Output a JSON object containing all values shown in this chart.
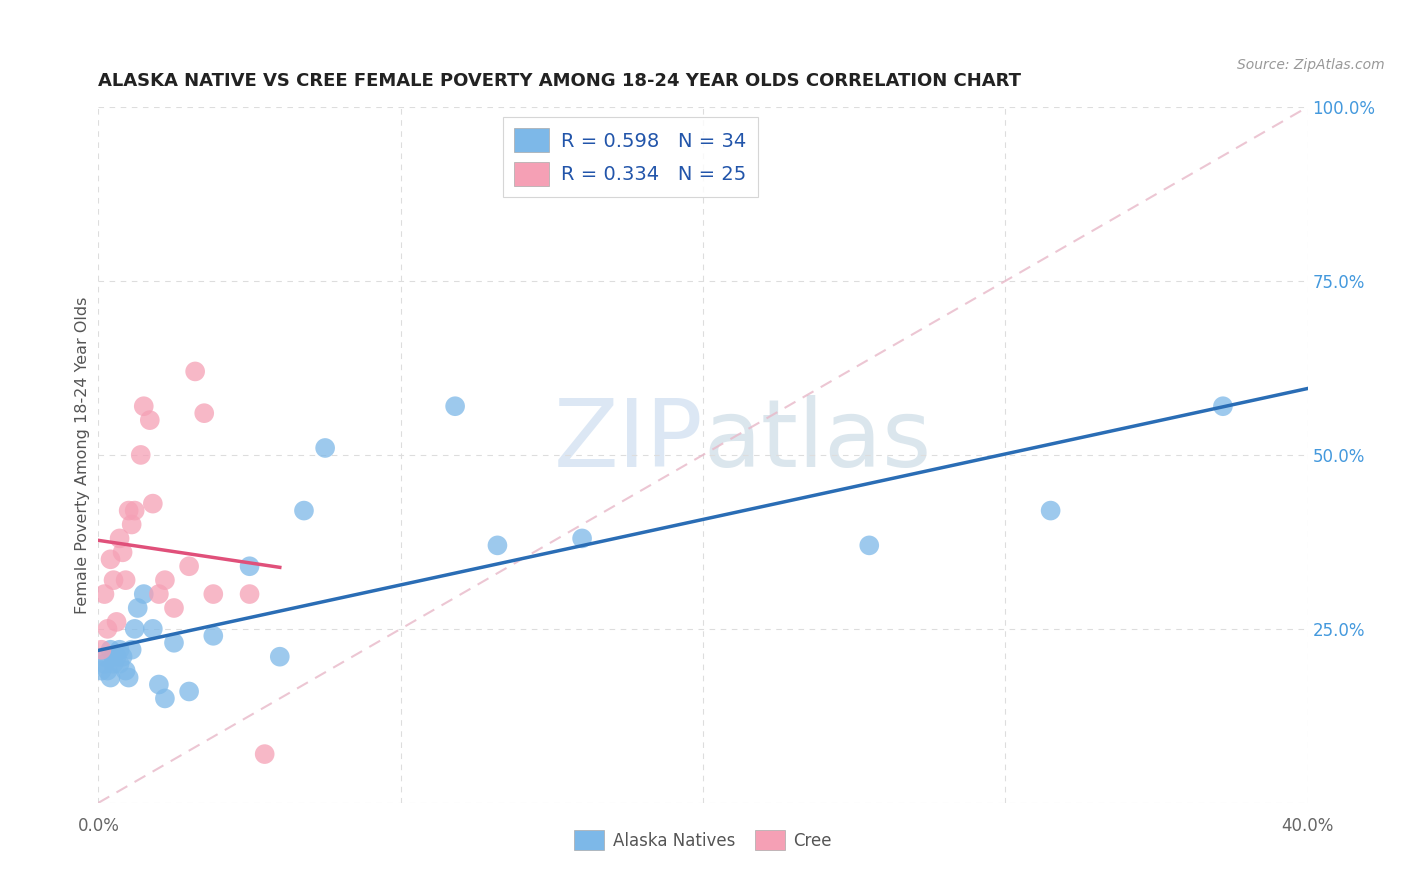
{
  "title": "ALASKA NATIVE VS CREE FEMALE POVERTY AMONG 18-24 YEAR OLDS CORRELATION CHART",
  "source": "Source: ZipAtlas.com",
  "ylabel": "Female Poverty Among 18-24 Year Olds",
  "xlim": [
    0.0,
    0.4
  ],
  "ylim": [
    0.0,
    1.0
  ],
  "xticks": [
    0.0,
    0.1,
    0.2,
    0.3,
    0.4
  ],
  "xticklabels": [
    "0.0%",
    "",
    "",
    "",
    "40.0%"
  ],
  "yticks": [
    0.0,
    0.25,
    0.5,
    0.75,
    1.0
  ],
  "yticklabels_right": [
    "",
    "25.0%",
    "50.0%",
    "75.0%",
    "100.0%"
  ],
  "alaska_R": "0.598",
  "alaska_N": "34",
  "cree_R": "0.334",
  "cree_N": "25",
  "alaska_color": "#7db8e8",
  "cree_color": "#f5a0b5",
  "alaska_line_color": "#2a6db5",
  "cree_line_color": "#e0507a",
  "dashed_line_color": "#e8b8c8",
  "legend_text_color": "#2255aa",
  "background_color": "#ffffff",
  "grid_color": "#dddddd",
  "watermark_color": "#c5d8ee",
  "alaska_x": [
    0.001,
    0.002,
    0.002,
    0.003,
    0.004,
    0.004,
    0.005,
    0.005,
    0.006,
    0.007,
    0.007,
    0.008,
    0.009,
    0.01,
    0.011,
    0.012,
    0.013,
    0.015,
    0.018,
    0.02,
    0.022,
    0.025,
    0.03,
    0.038,
    0.05,
    0.06,
    0.068,
    0.075,
    0.118,
    0.132,
    0.16,
    0.255,
    0.315,
    0.372
  ],
  "alaska_y": [
    0.19,
    0.21,
    0.2,
    0.19,
    0.18,
    0.22,
    0.2,
    0.21,
    0.21,
    0.2,
    0.22,
    0.21,
    0.19,
    0.18,
    0.22,
    0.25,
    0.28,
    0.3,
    0.25,
    0.17,
    0.15,
    0.23,
    0.16,
    0.24,
    0.34,
    0.21,
    0.42,
    0.51,
    0.57,
    0.37,
    0.38,
    0.37,
    0.42,
    0.57
  ],
  "cree_x": [
    0.001,
    0.002,
    0.003,
    0.004,
    0.005,
    0.006,
    0.007,
    0.008,
    0.009,
    0.01,
    0.011,
    0.012,
    0.014,
    0.015,
    0.017,
    0.018,
    0.02,
    0.022,
    0.025,
    0.03,
    0.032,
    0.035,
    0.038,
    0.05,
    0.055
  ],
  "cree_y": [
    0.22,
    0.3,
    0.25,
    0.35,
    0.32,
    0.26,
    0.38,
    0.36,
    0.32,
    0.42,
    0.4,
    0.42,
    0.5,
    0.57,
    0.55,
    0.43,
    0.3,
    0.32,
    0.28,
    0.34,
    0.62,
    0.56,
    0.3,
    0.3,
    0.07
  ]
}
